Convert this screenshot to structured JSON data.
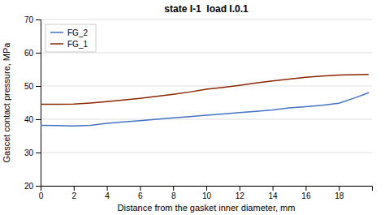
{
  "chart_data": {
    "type": "line",
    "title": "state I-1  load I.0.1",
    "x_label": "Distance from the gasket inner diameter, mm",
    "y_label": "Gascet contact pressure, MPa",
    "x": [
      0,
      1,
      2,
      3,
      4,
      5,
      6,
      7,
      8,
      9,
      10,
      11,
      12,
      13,
      14,
      15,
      16,
      17,
      18,
      19,
      19.8
    ],
    "series": [
      {
        "name": "FG_2",
        "color": "#4472C4",
        "values": [
          38.2,
          38.1,
          38.0,
          38.2,
          38.8,
          39.2,
          39.6,
          40.0,
          40.4,
          40.8,
          41.2,
          41.6,
          42.0,
          42.4,
          42.8,
          43.4,
          43.8,
          44.2,
          44.8,
          46.5,
          48.0
        ]
      },
      {
        "name": "FG_1",
        "color": "#8B2500",
        "values": [
          44.5,
          44.5,
          44.6,
          44.9,
          45.3,
          45.8,
          46.3,
          46.9,
          47.5,
          48.2,
          49.0,
          49.6,
          50.2,
          50.9,
          51.5,
          52.1,
          52.6,
          53.0,
          53.3,
          53.4,
          53.5
        ]
      }
    ],
    "xlim": [
      0,
      20
    ],
    "xticks": [
      0,
      2,
      4,
      6,
      8,
      10,
      12,
      14,
      16,
      18
    ],
    "ylim": [
      20,
      70
    ],
    "yticks": [
      20,
      30,
      40,
      50,
      60,
      70
    ],
    "grid": "y",
    "legend": "upper left"
  }
}
